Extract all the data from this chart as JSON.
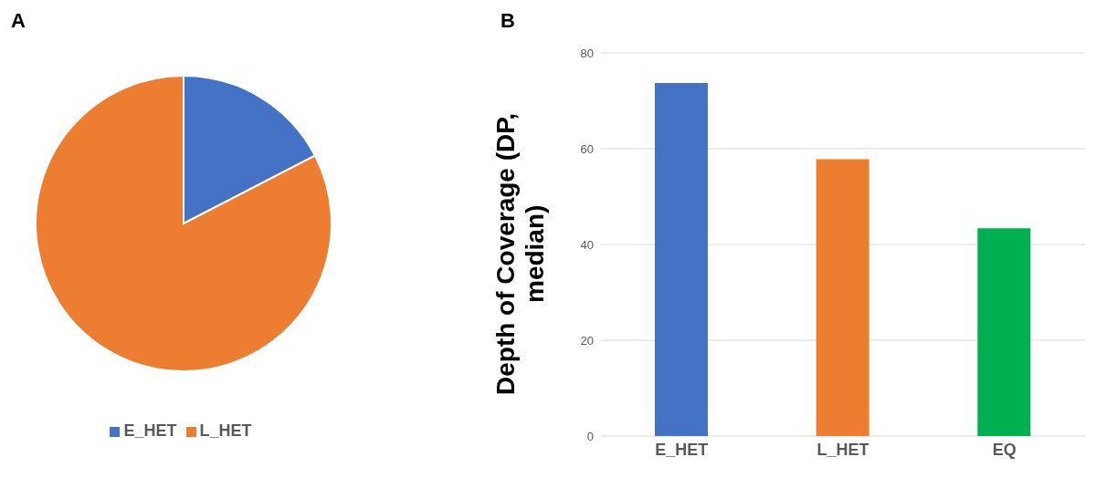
{
  "chart_data": [
    {
      "type": "pie",
      "title": "A",
      "categories": [
        "E_HET",
        "L_HET"
      ],
      "values": [
        17.4,
        82.6
      ],
      "colors": [
        "#4472c4",
        "#ed7d31"
      ],
      "legend": "bottom"
    },
    {
      "type": "bar",
      "title": "B",
      "categories": [
        "E_HET",
        "L_HET",
        "EQ"
      ],
      "values": [
        73.7,
        57.8,
        43.4
      ],
      "colors": [
        "#4472c4",
        "#ed7d31",
        "#00b050"
      ],
      "ylabel": "Depth of Coverage (DP, median)",
      "ylim": [
        0,
        80
      ],
      "yticks": [
        0,
        20,
        40,
        60,
        80
      ],
      "grid": "y"
    }
  ]
}
